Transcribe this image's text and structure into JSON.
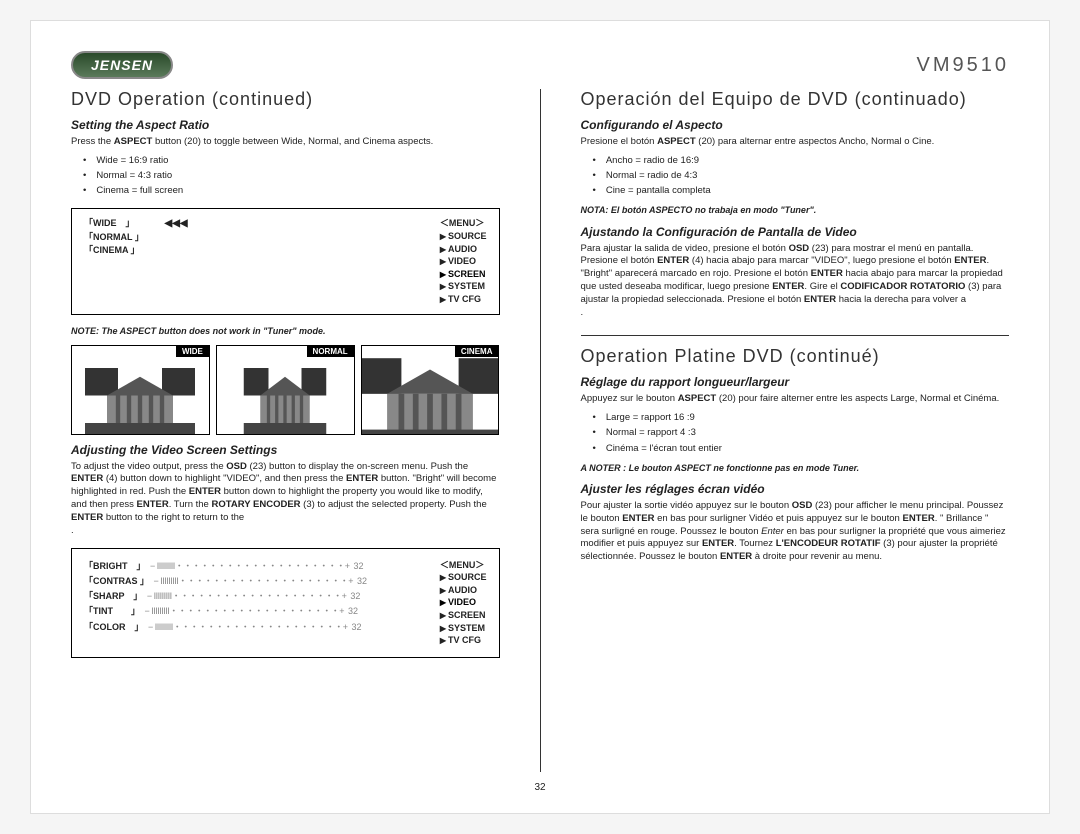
{
  "header": {
    "logo": "JENSEN",
    "model": "VM9510"
  },
  "pageNumber": "32",
  "left": {
    "title": "DVD Operation (continued)",
    "section1": {
      "heading": "Setting the Aspect Ratio",
      "intro_a": "Press the ",
      "intro_b": "ASPECT",
      "intro_c": " button (20) to toggle between Wide, Normal, and Cinema aspects.",
      "bullets": [
        "Wide = 16:9 ratio",
        "Normal = 4:3 ratio",
        "Cinema = full screen"
      ],
      "menu_left": [
        "「WIDE　」",
        "「NORMAL 」",
        "「CINEMA 」"
      ],
      "menu_arrows": "◀◀◀",
      "menu_right_title": "＜MENU＞",
      "menu_right_items": [
        "SOURCE",
        "AUDIO",
        "VIDEO",
        "SCREEN",
        "SYSTEM",
        "TV CFG"
      ],
      "menu_highlight": "SCREEN",
      "note": "NOTE: The ASPECT button does not work in \"Tuner\" mode.",
      "img_labels": [
        "WIDE",
        "NORMAL",
        "CINEMA"
      ]
    },
    "section2": {
      "heading": "Adjusting the Video Screen Settings",
      "para": "To adjust the video output, press the <b>OSD</b> (23) button to display the on-screen menu. Push the <b>ENTER</b> (4) button down to highlight \"VIDEO\", and then press the <b>ENTER</b> button. \"Bright\" will become highlighted in red. Push the <b>ENTER</b> button down to highlight the property you would like to modify, and then press <b>ENTER</b>. Turn the <b>ROTARY ENCODER</b> (3) to adjust the selected property. Push the <b>ENTER</b> button to the right to return to the <MENU>.",
      "settings_labels": [
        "「BRIGHT　」",
        "「CONTRAS 」",
        "「SHARP　」",
        "「TINT　　」",
        "「COLOR　」"
      ],
      "slider": "− IIIIIIIII・・・・・・・・・・・・・・・・・・・・+",
      "slider_val": "32",
      "menu_right_title": "＜MENU＞",
      "menu_right_items": [
        "SOURCE",
        "AUDIO",
        "VIDEO",
        "SCREEN",
        "SYSTEM",
        "TV CFG"
      ],
      "menu_highlight": "VIDEO"
    }
  },
  "right": {
    "title1": "Operación del Equipo de DVD (continuado)",
    "es1": {
      "heading": "Configurando el Aspecto",
      "intro_a": "Presione el botón ",
      "intro_b": "ASPECT",
      "intro_c": " (20) para alternar entre aspectos Ancho, Normal o Cine.",
      "bullets": [
        "Ancho = radio de 16:9",
        "Normal = radio de 4:3",
        "Cine = pantalla completa"
      ],
      "note": "NOTA: El botón ASPECTO no trabaja en modo \"Tuner\"."
    },
    "es2": {
      "heading": "Ajustando la Configuración de Pantalla de Video",
      "para": "Para ajustar la salida de video, presione el botón <b>OSD</b> (23) para mostrar el menú en pantalla. Presione el botón <b>ENTER</b> (4) hacia abajo para marcar \"VIDEO\", luego presione el botón <b>ENTER</b>. \"Bright\" aparecerá marcado en rojo. Presione el botón <b>ENTER</b> hacia abajo para marcar la propiedad que usted deseaba modificar, luego presione <b>ENTER</b>. Gire el <b>CODIFICADOR ROTATORIO</b> (3) para ajustar la propiedad seleccionada. Presione el botón <b>ENTER</b> hacia la derecha para volver a <MENU>."
    },
    "title2": "Operation Platine DVD (continué)",
    "fr1": {
      "heading": "Réglage du rapport longueur/largeur",
      "intro_a": "Appuyez sur le bouton ",
      "intro_b": "ASPECT",
      "intro_c": " (20) pour faire alterner entre les aspects Large, Normal et Cinéma.",
      "bullets": [
        "Large = rapport 16 :9",
        "Normal = rapport 4 :3",
        "Cinéma = l'écran tout entier"
      ],
      "note": "A NOTER : Le bouton ASPECT ne fonctionne pas en mode Tuner."
    },
    "fr2": {
      "heading": "Ajuster les réglages écran vidéo",
      "para": "Pour ajuster la sortie vidéo appuyez sur le bouton <b>OSD</b> (23) pour afficher le menu principal. Poussez le bouton <b>ENTER</b> en bas pour surligner Vidéo et puis appuyez sur le bouton <b>ENTER</b>. \" Brillance \" sera surligné en rouge. Poussez le bouton <i>Enter</i> en bas pour surligner la propriété que vous aimeriez modifier et puis appuyez sur <b>ENTER</b>. Tournez <b>L'ENCODEUR ROTATIF</b> (3) pour ajuster la propriété sélectionnée. Poussez le bouton <b>ENTER</b> à droite pour revenir au menu."
    }
  }
}
